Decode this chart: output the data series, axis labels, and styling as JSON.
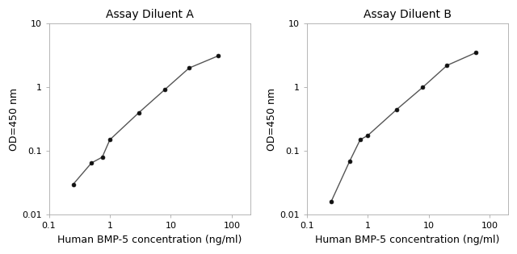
{
  "panel_A": {
    "title": "Assay Diluent A",
    "x": [
      0.25,
      0.5,
      0.75,
      1.0,
      3.0,
      8.0,
      20.0,
      60.0
    ],
    "y": [
      0.03,
      0.065,
      0.08,
      0.15,
      0.4,
      0.92,
      2.0,
      3.1
    ]
  },
  "panel_B": {
    "title": "Assay Diluent B",
    "x": [
      0.25,
      0.5,
      0.75,
      1.0,
      3.0,
      8.0,
      20.0,
      60.0
    ],
    "y": [
      0.016,
      0.068,
      0.15,
      0.175,
      0.45,
      1.0,
      2.2,
      3.5
    ]
  },
  "xlabel": "Human BMP-5 concentration (ng/ml)",
  "ylabel": "OD=450 nm",
  "xlim": [
    0.1,
    200
  ],
  "ylim": [
    0.01,
    10
  ],
  "xticks": [
    0.1,
    1,
    10,
    100
  ],
  "xtick_labels": [
    "0.1",
    "1",
    "10",
    "100"
  ],
  "yticks": [
    0.01,
    0.1,
    1,
    10
  ],
  "ytick_labels": [
    "0.01",
    "0.1",
    "1",
    "10"
  ],
  "line_color": "#555555",
  "marker_color": "#111111",
  "bg_color": "#ffffff",
  "title_fontsize": 10,
  "label_fontsize": 9,
  "tick_fontsize": 8
}
